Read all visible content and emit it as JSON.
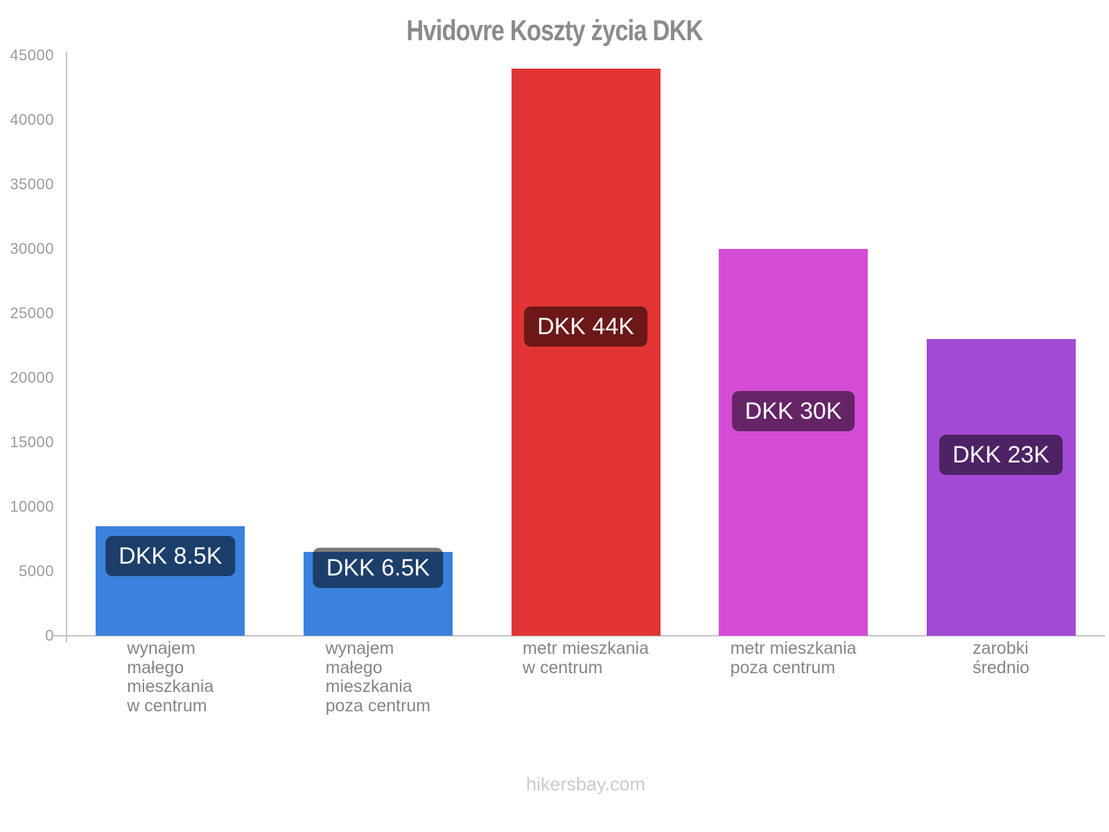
{
  "page": {
    "watermark": "hikersbay.com"
  },
  "chart_data": {
    "type": "bar",
    "title": "Hvidovre Koszty życia DKK",
    "currency": "DKK",
    "categories": [
      "wynajem małego mieszkania w centrum",
      "wynajem małego mieszkania poza centrum",
      "metr mieszkania w centrum",
      "metr mieszkania poza centrum",
      "zarobki średnio"
    ],
    "category_lines": [
      [
        "wynajem",
        "małego",
        "mieszkania",
        "w centrum"
      ],
      [
        "wynajem",
        "małego",
        "mieszkania",
        "poza centrum"
      ],
      [
        "metr mieszkania",
        "w centrum"
      ],
      [
        "metr mieszkania",
        "poza centrum"
      ],
      [
        "zarobki",
        "średnio"
      ]
    ],
    "values": [
      8500,
      6500,
      44000,
      30000,
      23000
    ],
    "value_labels": [
      "DKK 8.5K",
      "DKK 6.5K",
      "DKK 44K",
      "DKK 30K",
      "DKK 23K"
    ],
    "bar_colors": [
      "#3b82dd",
      "#3b82dd",
      "#e23435",
      "#d44cd5",
      "#a24ad4"
    ],
    "xlabel": "",
    "ylabel": "",
    "ylim": [
      0,
      45000
    ],
    "yticks": [
      0,
      5000,
      10000,
      15000,
      20000,
      25000,
      30000,
      35000,
      40000,
      45000
    ],
    "ytick_labels": [
      "0",
      "5000",
      "10000",
      "15000",
      "20000",
      "25000",
      "30000",
      "35000",
      "40000",
      "45000"
    ],
    "grid": false,
    "legend": "none",
    "badge_center_frac_from_top": [
      0.27,
      0.19,
      0.455,
      0.42,
      0.39
    ],
    "colors": {
      "axis": "#c4c4c4",
      "tick_text": "#9b9b9b",
      "category_text": "#858585",
      "title_text": "#8b8b8b",
      "watermark_text": "#cbcbcb",
      "badge_bg": "rgba(0,0,0,0.52)",
      "badge_text": "#ffffff"
    }
  }
}
